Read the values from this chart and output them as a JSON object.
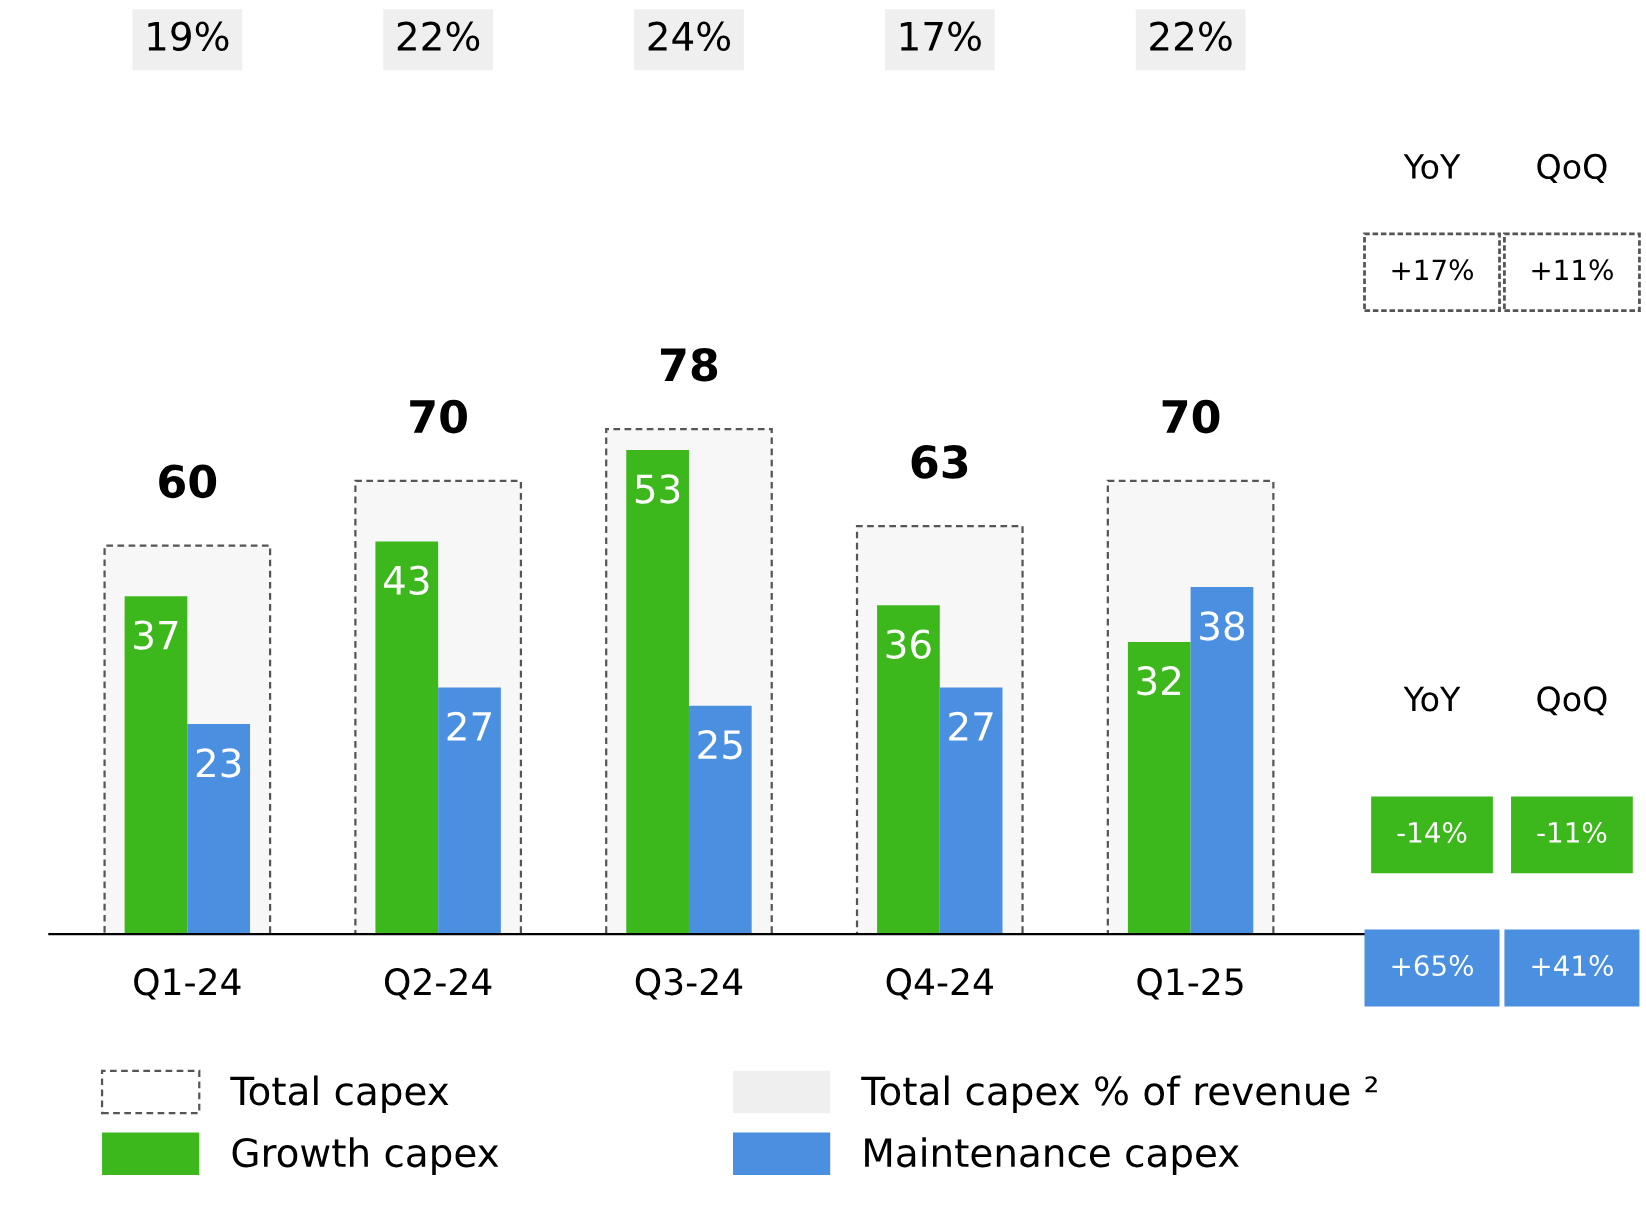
{
  "chart_data": {
    "type": "bar",
    "categories": [
      "Q1-24",
      "Q2-24",
      "Q3-24",
      "Q4-24",
      "Q1-25"
    ],
    "series": [
      {
        "name": "Total capex",
        "type": "bar",
        "axis": "y2",
        "color": "#f7f7f7",
        "line_style": "dashed",
        "values": [
          60,
          70,
          78,
          63,
          70
        ]
      },
      {
        "name": "Growth capex",
        "type": "bar",
        "color": "#3cb81c",
        "values": [
          37,
          43,
          53,
          36,
          32
        ]
      },
      {
        "name": "Maintenance capex",
        "type": "bar",
        "color": "#4a8fe0",
        "values": [
          23,
          27,
          25,
          27,
          38
        ]
      }
    ],
    "data_labels": true,
    "legend": "bottom",
    "annotations": [
      "19%",
      "22%",
      "24%",
      "17%",
      "22%",
      "Total capex % of revenue ²",
      "YoY",
      "QoQ",
      "+17%",
      "+11%",
      "YoY",
      "QoQ",
      "-14%",
      "-11%",
      "+65%",
      "+41%"
    ]
  }
}
